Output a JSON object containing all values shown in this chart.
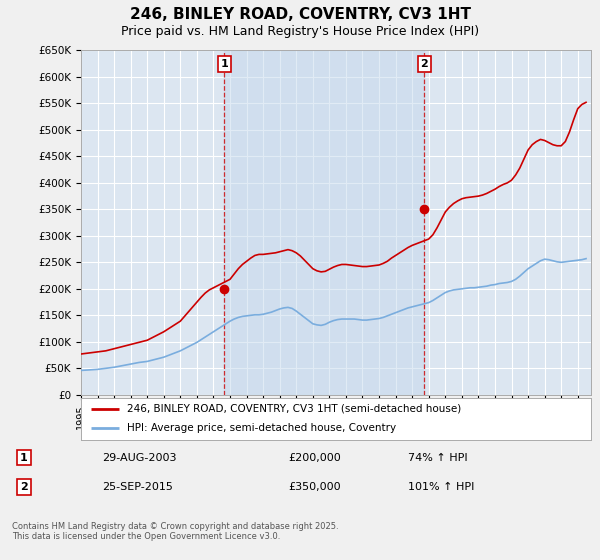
{
  "title": "246, BINLEY ROAD, COVENTRY, CV3 1HT",
  "subtitle": "Price paid vs. HM Land Registry's House Price Index (HPI)",
  "title_fontsize": 11,
  "subtitle_fontsize": 9,
  "ylabel_ticks": [
    "£0",
    "£50K",
    "£100K",
    "£150K",
    "£200K",
    "£250K",
    "£300K",
    "£350K",
    "£400K",
    "£450K",
    "£500K",
    "£550K",
    "£600K",
    "£650K"
  ],
  "ytick_values": [
    0,
    50000,
    100000,
    150000,
    200000,
    250000,
    300000,
    350000,
    400000,
    450000,
    500000,
    550000,
    600000,
    650000
  ],
  "ylim": [
    0,
    650000
  ],
  "xlim_start": 1995.0,
  "xlim_end": 2025.8,
  "background_color": "#f0f0f0",
  "plot_bg_color": "#dce6f1",
  "grid_color": "#ffffff",
  "red_color": "#cc0000",
  "blue_color": "#7aadde",
  "shade_color": "#c5d8ed",
  "purchase1_date": 2003.66,
  "purchase1_price": 200000,
  "purchase1_label": "29-AUG-2003",
  "purchase1_price_label": "£200,000",
  "purchase1_hpi_label": "74% ↑ HPI",
  "purchase2_date": 2015.73,
  "purchase2_price": 350000,
  "purchase2_label": "25-SEP-2015",
  "purchase2_price_label": "£350,000",
  "purchase2_hpi_label": "101% ↑ HPI",
  "legend_line1": "246, BINLEY ROAD, COVENTRY, CV3 1HT (semi-detached house)",
  "legend_line2": "HPI: Average price, semi-detached house, Coventry",
  "footer": "Contains HM Land Registry data © Crown copyright and database right 2025.\nThis data is licensed under the Open Government Licence v3.0.",
  "hpi_x": [
    1995.0,
    1995.25,
    1995.5,
    1995.75,
    1996.0,
    1996.25,
    1996.5,
    1996.75,
    1997.0,
    1997.25,
    1997.5,
    1997.75,
    1998.0,
    1998.25,
    1998.5,
    1998.75,
    1999.0,
    1999.25,
    1999.5,
    1999.75,
    2000.0,
    2000.25,
    2000.5,
    2000.75,
    2001.0,
    2001.25,
    2001.5,
    2001.75,
    2002.0,
    2002.25,
    2002.5,
    2002.75,
    2003.0,
    2003.25,
    2003.5,
    2003.75,
    2004.0,
    2004.25,
    2004.5,
    2004.75,
    2005.0,
    2005.25,
    2005.5,
    2005.75,
    2006.0,
    2006.25,
    2006.5,
    2006.75,
    2007.0,
    2007.25,
    2007.5,
    2007.75,
    2008.0,
    2008.25,
    2008.5,
    2008.75,
    2009.0,
    2009.25,
    2009.5,
    2009.75,
    2010.0,
    2010.25,
    2010.5,
    2010.75,
    2011.0,
    2011.25,
    2011.5,
    2011.75,
    2012.0,
    2012.25,
    2012.5,
    2012.75,
    2013.0,
    2013.25,
    2013.5,
    2013.75,
    2014.0,
    2014.25,
    2014.5,
    2014.75,
    2015.0,
    2015.25,
    2015.5,
    2015.75,
    2016.0,
    2016.25,
    2016.5,
    2016.75,
    2017.0,
    2017.25,
    2017.5,
    2017.75,
    2018.0,
    2018.25,
    2018.5,
    2018.75,
    2019.0,
    2019.25,
    2019.5,
    2019.75,
    2020.0,
    2020.25,
    2020.5,
    2020.75,
    2021.0,
    2021.25,
    2021.5,
    2021.75,
    2022.0,
    2022.25,
    2022.5,
    2022.75,
    2023.0,
    2023.25,
    2023.5,
    2023.75,
    2024.0,
    2024.25,
    2024.5,
    2024.75,
    2025.0,
    2025.25,
    2025.5
  ],
  "hpi_y": [
    46000,
    46500,
    47000,
    47500,
    48000,
    49000,
    50000,
    51000,
    52000,
    53500,
    55000,
    56500,
    58000,
    59500,
    61000,
    62000,
    63000,
    65000,
    67000,
    69000,
    71000,
    74000,
    77000,
    80000,
    83000,
    87000,
    91000,
    95000,
    99000,
    104000,
    109000,
    114000,
    119000,
    124000,
    129000,
    134000,
    139000,
    143000,
    146000,
    148000,
    149000,
    150000,
    151000,
    151000,
    152000,
    154000,
    156000,
    159000,
    162000,
    164000,
    165000,
    163000,
    158000,
    152000,
    146000,
    140000,
    134000,
    132000,
    131000,
    133000,
    137000,
    140000,
    142000,
    143000,
    143000,
    143000,
    143000,
    142000,
    141000,
    141000,
    142000,
    143000,
    144000,
    146000,
    149000,
    152000,
    155000,
    158000,
    161000,
    164000,
    166000,
    168000,
    170000,
    172000,
    174000,
    178000,
    183000,
    188000,
    193000,
    196000,
    198000,
    199000,
    200000,
    201000,
    202000,
    202000,
    203000,
    204000,
    205000,
    207000,
    208000,
    210000,
    211000,
    212000,
    214000,
    218000,
    224000,
    231000,
    238000,
    243000,
    248000,
    253000,
    256000,
    255000,
    253000,
    251000,
    250000,
    251000,
    252000,
    253000,
    254000,
    255000,
    257000
  ],
  "price_x": [
    1995.0,
    1995.25,
    1995.5,
    1995.75,
    1996.0,
    1996.25,
    1996.5,
    1996.75,
    1997.0,
    1997.25,
    1997.5,
    1997.75,
    1998.0,
    1998.25,
    1998.5,
    1998.75,
    1999.0,
    1999.25,
    1999.5,
    1999.75,
    2000.0,
    2000.25,
    2000.5,
    2000.75,
    2001.0,
    2001.25,
    2001.5,
    2001.75,
    2002.0,
    2002.25,
    2002.5,
    2002.75,
    2003.0,
    2003.25,
    2003.5,
    2003.75,
    2004.0,
    2004.25,
    2004.5,
    2004.75,
    2005.0,
    2005.25,
    2005.5,
    2005.75,
    2006.0,
    2006.25,
    2006.5,
    2006.75,
    2007.0,
    2007.25,
    2007.5,
    2007.75,
    2008.0,
    2008.25,
    2008.5,
    2008.75,
    2009.0,
    2009.25,
    2009.5,
    2009.75,
    2010.0,
    2010.25,
    2010.5,
    2010.75,
    2011.0,
    2011.25,
    2011.5,
    2011.75,
    2012.0,
    2012.25,
    2012.5,
    2012.75,
    2013.0,
    2013.25,
    2013.5,
    2013.75,
    2014.0,
    2014.25,
    2014.5,
    2014.75,
    2015.0,
    2015.25,
    2015.5,
    2015.75,
    2016.0,
    2016.25,
    2016.5,
    2016.75,
    2017.0,
    2017.25,
    2017.5,
    2017.75,
    2018.0,
    2018.25,
    2018.5,
    2018.75,
    2019.0,
    2019.25,
    2019.5,
    2019.75,
    2020.0,
    2020.25,
    2020.5,
    2020.75,
    2021.0,
    2021.25,
    2021.5,
    2021.75,
    2022.0,
    2022.25,
    2022.5,
    2022.75,
    2023.0,
    2023.25,
    2023.5,
    2023.75,
    2024.0,
    2024.25,
    2024.5,
    2024.75,
    2025.0,
    2025.25,
    2025.5
  ],
  "price_y": [
    77000,
    78000,
    79000,
    80000,
    81000,
    82000,
    83000,
    85000,
    87000,
    89000,
    91000,
    93000,
    95000,
    97000,
    99000,
    101000,
    103000,
    107000,
    111000,
    115000,
    119000,
    124000,
    129000,
    134000,
    139000,
    148000,
    157000,
    166000,
    175000,
    184000,
    192000,
    198000,
    202000,
    206000,
    210000,
    214000,
    218000,
    228000,
    238000,
    246000,
    252000,
    258000,
    263000,
    265000,
    265000,
    266000,
    267000,
    268000,
    270000,
    272000,
    274000,
    272000,
    268000,
    262000,
    254000,
    246000,
    238000,
    234000,
    232000,
    233000,
    237000,
    241000,
    244000,
    246000,
    246000,
    245000,
    244000,
    243000,
    242000,
    242000,
    243000,
    244000,
    245000,
    248000,
    252000,
    258000,
    263000,
    268000,
    273000,
    278000,
    282000,
    285000,
    288000,
    291000,
    294000,
    302000,
    315000,
    330000,
    345000,
    354000,
    361000,
    366000,
    370000,
    372000,
    373000,
    374000,
    375000,
    377000,
    380000,
    384000,
    388000,
    393000,
    397000,
    400000,
    405000,
    415000,
    428000,
    445000,
    462000,
    472000,
    478000,
    482000,
    480000,
    476000,
    472000,
    470000,
    470000,
    478000,
    496000,
    519000,
    540000,
    548000,
    552000
  ]
}
